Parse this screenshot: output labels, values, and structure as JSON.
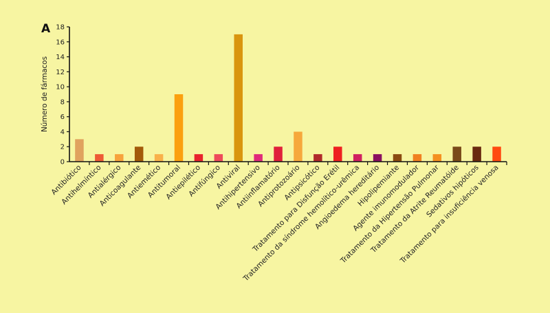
{
  "chart_data": {
    "type": "bar",
    "panel_label": "A",
    "title": "",
    "xlabel": "",
    "ylabel": "Número de fármacos",
    "ylim": [
      0,
      18
    ],
    "yticks": [
      0,
      2,
      4,
      6,
      8,
      10,
      12,
      14,
      16,
      18
    ],
    "grid": false,
    "categories": [
      "Antibiótico",
      "Antihelmíntico",
      "Antialérgico",
      "Anticoagulante",
      "Antiemético",
      "Antitumoral",
      "Antiepilético",
      "Antifúngico",
      "Antiviral",
      "Antihipertensivo",
      "Antiinflamatório",
      "Antiprotozoário",
      "Antipsicótico",
      "Tratamento para Disfunção Erétil",
      "Tratamento da síndrome hemolítico-urêmica",
      "Angioedema hereditário",
      "Hipolipemiante",
      "Agente imunomodulador",
      "Tratamento da Hipertensão Pulmonar",
      "Tratamento da Atrite Reumatóide",
      "Sedativos hipóticos",
      "Tratamento para insuficiência venosa"
    ],
    "values": [
      3,
      1,
      1,
      2,
      1,
      9,
      1,
      1,
      17,
      1,
      2,
      4,
      1,
      2,
      1,
      1,
      1,
      1,
      1,
      2,
      2,
      2
    ],
    "colors": [
      "#e0a25e",
      "#ee5a35",
      "#f7a23c",
      "#a35a0a",
      "#f9b14a",
      "#fba00f",
      "#e8232d",
      "#ee4a5a",
      "#d9950f",
      "#e02a7a",
      "#e0203a",
      "#f6a83c",
      "#b02a2a",
      "#ee2020",
      "#d02060",
      "#8a1060",
      "#8a4a10",
      "#f08020",
      "#f49020",
      "#7a4a1a",
      "#6a2a10",
      "#ff4a10"
    ]
  }
}
